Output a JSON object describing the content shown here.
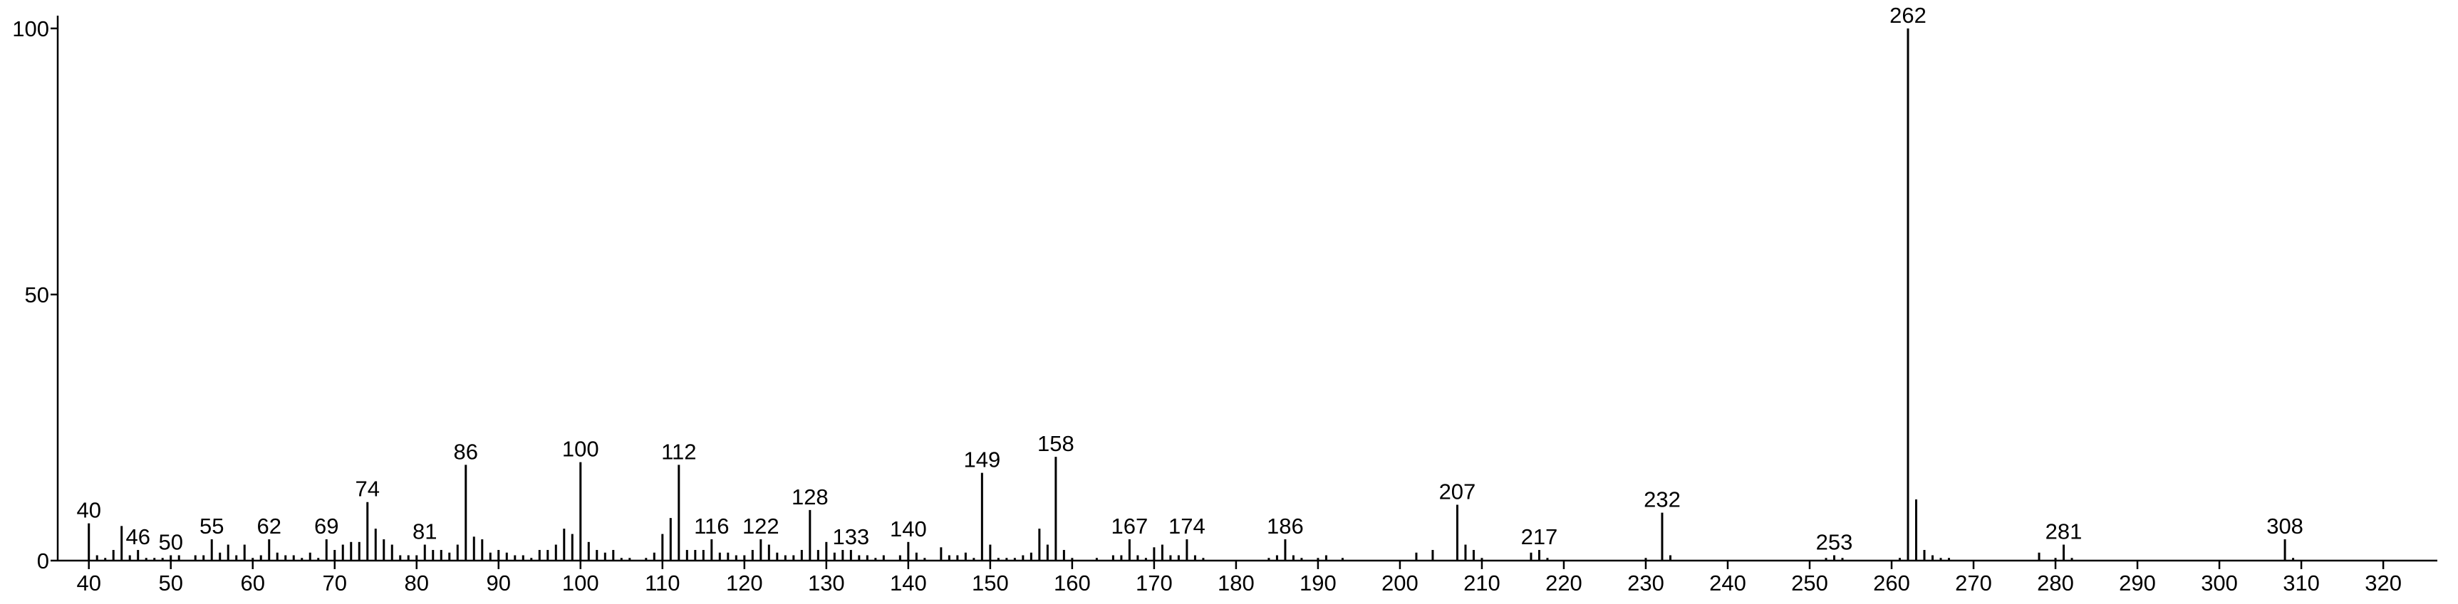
{
  "chart_data": {
    "type": "bar",
    "xlim": [
      36.2,
      326.6
    ],
    "ylim": [
      0,
      102.4
    ],
    "xticks": [
      40,
      50,
      60,
      70,
      80,
      90,
      100,
      110,
      120,
      130,
      140,
      150,
      160,
      170,
      180,
      190,
      200,
      210,
      220,
      230,
      240,
      250,
      260,
      270,
      280,
      290,
      300,
      310,
      320
    ],
    "yticks": [
      0,
      50,
      100
    ],
    "series": [
      {
        "color": "#000000",
        "labeled": true,
        "x": [
          40,
          46,
          50,
          55,
          62,
          69,
          74,
          81,
          86,
          100,
          112,
          116,
          122,
          128,
          133,
          140,
          149,
          158,
          167,
          174,
          186,
          207,
          217,
          232,
          253,
          262,
          281,
          308
        ],
        "values": [
          7,
          2,
          1,
          4,
          4,
          4,
          11,
          3,
          18,
          18.5,
          18,
          4,
          4,
          9.5,
          2,
          3.5,
          16.5,
          19.5,
          4,
          4,
          4,
          10.5,
          2,
          9,
          1,
          100,
          3,
          4
        ]
      },
      {
        "color": "#000000",
        "labeled": false,
        "x": [
          41,
          42,
          43,
          44,
          45,
          47,
          48,
          49,
          51,
          53,
          54,
          56,
          57,
          58,
          59,
          60,
          61,
          63,
          64,
          65,
          66,
          67,
          68,
          70,
          71,
          72,
          73,
          75,
          76,
          77,
          78,
          79,
          80,
          82,
          83,
          84,
          85,
          87,
          88,
          89,
          90,
          91,
          92,
          93,
          94,
          95,
          96,
          97,
          98,
          99,
          101,
          102,
          103,
          104,
          105,
          106,
          108,
          109,
          110,
          111,
          113,
          114,
          115,
          117,
          118,
          119,
          120,
          121,
          123,
          124,
          125,
          126,
          127,
          129,
          130,
          131,
          132,
          134,
          135,
          136,
          137,
          139,
          141,
          142,
          144,
          145,
          146,
          147,
          148,
          150,
          151,
          152,
          153,
          154,
          155,
          156,
          157,
          159,
          160,
          163,
          165,
          166,
          168,
          169,
          170,
          171,
          172,
          173,
          175,
          176,
          184,
          185,
          187,
          188,
          190,
          191,
          193,
          202,
          204,
          208,
          209,
          210,
          216,
          218,
          230,
          233,
          252,
          254,
          261,
          263,
          264,
          265,
          266,
          267,
          278,
          280,
          282,
          309
        ],
        "values": [
          1,
          0.5,
          2,
          6.5,
          1,
          0.5,
          0.5,
          0.5,
          1,
          1,
          1,
          1.5,
          3,
          1,
          3,
          0.5,
          1,
          1.5,
          1,
          1,
          0.5,
          1.5,
          0.5,
          2,
          3,
          3.5,
          3.5,
          6,
          4,
          3,
          1,
          1,
          1,
          2,
          2,
          1.5,
          3,
          4.5,
          4,
          1.5,
          2,
          1.5,
          1,
          1,
          0.5,
          2,
          2,
          3,
          6,
          5,
          3.5,
          2,
          1.5,
          2,
          0.5,
          0.5,
          0.5,
          1.5,
          5,
          8,
          2,
          2,
          2,
          1.5,
          1.5,
          1,
          1,
          2,
          3,
          1.5,
          1,
          1,
          2,
          2,
          3.5,
          1.5,
          2,
          1,
          1,
          0.5,
          1,
          1,
          1.5,
          0.5,
          2.5,
          1,
          1,
          1.5,
          0.5,
          3,
          0.5,
          0.5,
          0.5,
          1,
          1.5,
          6,
          3,
          2,
          0.5,
          0.5,
          1,
          1,
          1,
          0.5,
          2.5,
          3,
          1,
          1,
          1,
          0.5,
          0.5,
          1,
          1,
          0.5,
          0.5,
          1,
          0.5,
          1.5,
          2,
          3,
          2,
          0.5,
          1.5,
          0.5,
          0.5,
          1,
          0.5,
          0.5,
          0.5,
          11.5,
          2,
          1,
          0.5,
          0.5,
          1.5,
          0.5,
          0.5,
          0.5
        ]
      }
    ]
  }
}
